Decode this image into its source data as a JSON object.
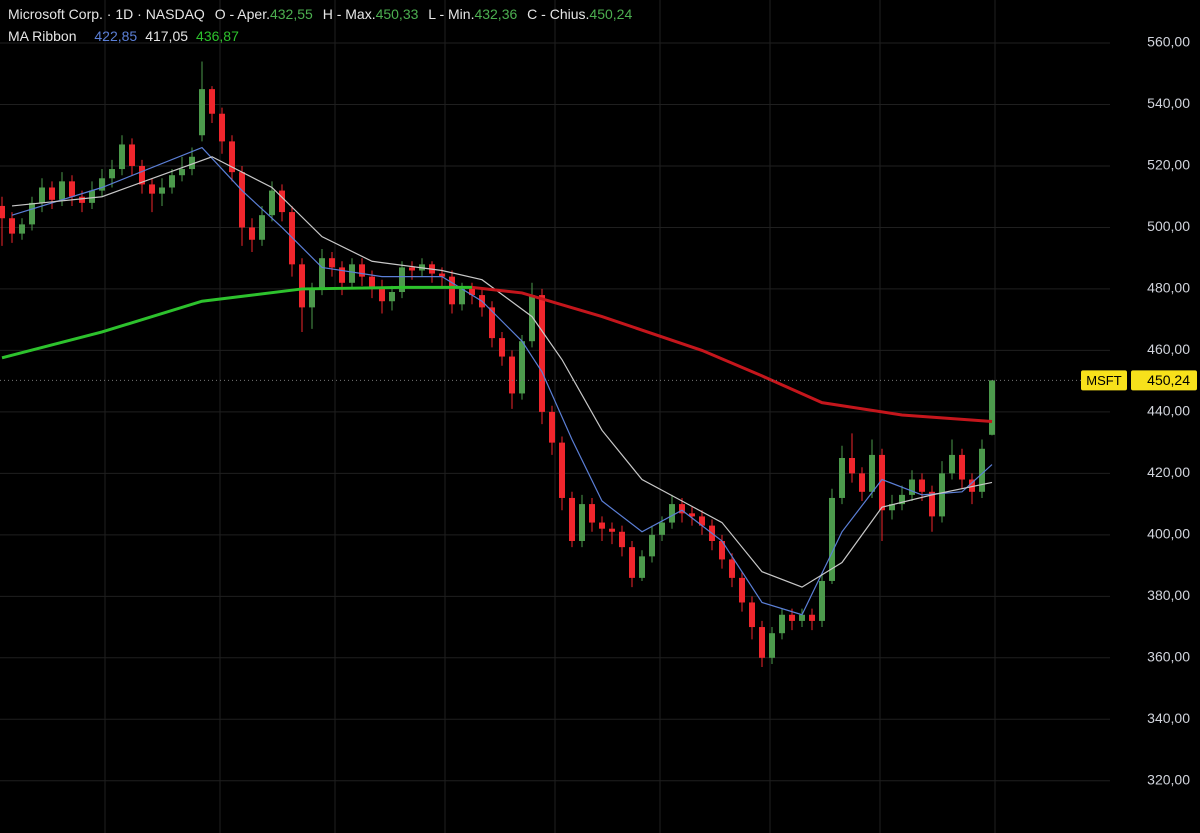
{
  "header": {
    "title": "Microsoft Corp. · 1D · NASDAQ",
    "ohlc": [
      {
        "label": "O - Aper.",
        "value": {
          "value": 432.55,
          "label": "432,55"
        }
      },
      {
        "label": "H - Max.",
        "value": {
          "value": 450.33,
          "label": "450,33"
        }
      },
      {
        "label": "L - Min.",
        "value": {
          "value": 432.36,
          "label": "432,36"
        }
      },
      {
        "label": "C - Chius.",
        "value": {
          "value": 450.24,
          "label": "450,24"
        }
      }
    ]
  },
  "chart_data": {
    "type": "candlestick",
    "up_color": "#4c9a4c",
    "down_color": "#f0262d",
    "grid": true,
    "ylim": [
      303,
      574
    ],
    "yticks": [
      {
        "value": 320,
        "label": "320,00"
      },
      {
        "value": 340,
        "label": "340,00"
      },
      {
        "value": 360,
        "label": "360,00"
      },
      {
        "value": 380,
        "label": "380,00"
      },
      {
        "value": 400,
        "label": "400,00"
      },
      {
        "value": 420,
        "label": "420,00"
      },
      {
        "value": 440,
        "label": "440,00"
      },
      {
        "value": 460,
        "label": "460,00"
      },
      {
        "value": 480,
        "label": "480,00"
      },
      {
        "value": 500,
        "label": "500,00"
      },
      {
        "value": 520,
        "label": "520,00"
      },
      {
        "value": 540,
        "label": "540,00"
      },
      {
        "value": 560,
        "label": "560,00"
      }
    ],
    "open": [
      507,
      503,
      498,
      501,
      508,
      513,
      509,
      515,
      510,
      508,
      512,
      516,
      519,
      527,
      520,
      514,
      511,
      513,
      517,
      519,
      530,
      545,
      537,
      528,
      518,
      500,
      496,
      504,
      512,
      505,
      488,
      474,
      480,
      490,
      487,
      482,
      488,
      484,
      480,
      476,
      479,
      487,
      486,
      488,
      485,
      484,
      475,
      480,
      478,
      474,
      464,
      458,
      446,
      463,
      478,
      440,
      430,
      412,
      398,
      410,
      404,
      402,
      401,
      396,
      386,
      393,
      400,
      404,
      410,
      407,
      406,
      403,
      398,
      392,
      386,
      378,
      370,
      360,
      368,
      374,
      372,
      374,
      372,
      385,
      412,
      425,
      420,
      414,
      426,
      408,
      410,
      413,
      418,
      414,
      406,
      420,
      426,
      418,
      414,
      432.55
    ],
    "high": [
      510,
      505,
      503,
      510,
      516,
      515,
      518,
      517,
      512,
      515,
      519,
      522,
      530,
      529,
      522,
      516,
      516,
      519,
      523,
      526,
      554,
      546,
      539,
      530,
      520,
      503,
      507,
      515,
      514,
      507,
      490,
      482,
      493,
      492,
      489,
      490,
      490,
      486,
      483,
      481,
      489,
      489,
      490,
      489,
      487,
      486,
      482,
      482,
      480,
      476,
      466,
      460,
      465,
      482,
      480,
      442,
      432,
      414,
      413,
      412,
      406,
      404,
      403,
      398,
      395,
      403,
      406,
      413,
      412,
      409,
      408,
      405,
      400,
      394,
      388,
      380,
      372,
      370,
      376,
      376,
      376,
      376,
      387,
      415,
      429,
      433,
      422,
      431,
      428,
      413,
      416,
      421,
      420,
      416,
      424,
      431,
      428,
      420,
      431,
      450.33
    ],
    "low": [
      494,
      495,
      496,
      499,
      505,
      506,
      507,
      507,
      505,
      506,
      510,
      513,
      517,
      517,
      511,
      505,
      507,
      511,
      515,
      517,
      528,
      534,
      524,
      515,
      494,
      492,
      494,
      502,
      502,
      484,
      466,
      467,
      478,
      484,
      478,
      480,
      481,
      477,
      472,
      473,
      477,
      483,
      484,
      482,
      480,
      472,
      473,
      475,
      471,
      461,
      455,
      441,
      444,
      461,
      436,
      426,
      408,
      396,
      396,
      401,
      398,
      397,
      393,
      383,
      385,
      391,
      398,
      402,
      404,
      403,
      400,
      395,
      389,
      383,
      375,
      366,
      357,
      358,
      366,
      369,
      370,
      369,
      370,
      384,
      410,
      417,
      411,
      412,
      398,
      405,
      408,
      411,
      411,
      401,
      404,
      418,
      415,
      410,
      412,
      432.36
    ],
    "close": [
      503,
      498,
      501,
      508,
      513,
      509,
      515,
      510,
      508,
      512,
      516,
      519,
      527,
      520,
      514,
      511,
      513,
      517,
      519,
      523,
      545,
      537,
      528,
      518,
      500,
      496,
      504,
      512,
      505,
      488,
      474,
      480,
      490,
      487,
      482,
      488,
      484,
      480,
      476,
      479,
      487,
      486,
      488,
      485,
      484,
      475,
      480,
      478,
      474,
      464,
      458,
      446,
      463,
      478,
      440,
      430,
      412,
      398,
      410,
      404,
      402,
      401,
      396,
      386,
      393,
      400,
      404,
      410,
      407,
      406,
      403,
      398,
      392,
      386,
      378,
      370,
      360,
      368,
      374,
      372,
      374,
      372,
      385,
      412,
      425,
      420,
      414,
      426,
      408,
      410,
      413,
      418,
      414,
      406,
      420,
      426,
      418,
      414,
      428,
      450.24
    ],
    "ma_ribbon": {
      "title": "MA Ribbon",
      "lines": [
        {
          "color": "#5b7fd6",
          "x": [
            1,
            10,
            20,
            24,
            28,
            32,
            38,
            44,
            48,
            52,
            54,
            57,
            60,
            64,
            68,
            72,
            76,
            80,
            84,
            88,
            92,
            96,
            99
          ],
          "values": [
            504,
            513,
            526,
            512,
            500,
            487,
            484,
            484,
            476,
            463,
            453,
            431,
            411,
            401,
            408,
            398,
            378,
            374,
            401,
            418,
            413,
            414,
            422.85
          ],
          "last": {
            "value": 422.85,
            "label": "422,85"
          }
        },
        {
          "color": "#c8c8c8",
          "x": [
            1,
            10,
            21,
            27,
            32,
            37,
            44,
            48,
            53,
            56,
            60,
            64,
            68,
            72,
            76,
            80,
            84,
            88,
            93,
            99
          ],
          "values": [
            507,
            510,
            523,
            513,
            497,
            489,
            486,
            483,
            471,
            457,
            434,
            418,
            411,
            404,
            388,
            383,
            391,
            409,
            413,
            417.05
          ],
          "last": {
            "value": 417.05,
            "label": "417,05"
          }
        },
        {
          "color": "#2dc22d",
          "x": [
            0,
            10,
            20,
            30,
            40,
            47
          ],
          "values": [
            457.6,
            466,
            476,
            480,
            480.5,
            480.5
          ],
          "last": {
            "value": 436.87,
            "label": "436,87"
          }
        },
        {
          "color": "#c4161c",
          "x": [
            47,
            52,
            60,
            70,
            76,
            82,
            90,
            99
          ],
          "values": [
            480.5,
            478.7,
            471,
            460,
            451.7,
            443,
            439,
            436.87
          ]
        }
      ]
    },
    "price_tag": {
      "symbol": "MSFT",
      "value": {
        "value": 450.24,
        "label": "450,24"
      },
      "color": "#f7e11b"
    }
  }
}
